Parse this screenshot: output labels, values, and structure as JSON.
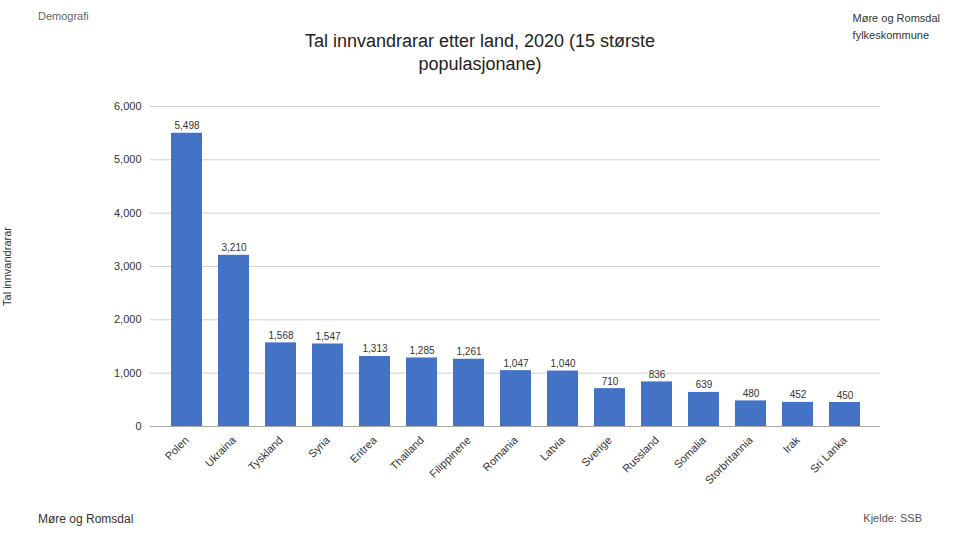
{
  "chart_data": {
    "type": "bar",
    "title": "Tal innvandrarar etter land, 2020 (15 største\npopulasjonane)",
    "ylabel": "Tal innvandrarar",
    "categories": [
      "Polen",
      "Ukraina",
      "Tyskland",
      "Syria",
      "Eritrea",
      "Thailand",
      "Filippinene",
      "Romania",
      "Latvia",
      "Sverige",
      "Russland",
      "Somalia",
      "Storbritannia",
      "Irak",
      "Sri Lanka"
    ],
    "values": [
      5498,
      3210,
      1568,
      1547,
      1313,
      1285,
      1261,
      1047,
      1040,
      710,
      836,
      639,
      480,
      452,
      450
    ],
    "value_labels": [
      "5,498",
      "3,210",
      "1,568",
      "1,547",
      "1,313",
      "1,285",
      "1,261",
      "1,047",
      "1,040",
      "710",
      "836",
      "639",
      "480",
      "452",
      "450"
    ],
    "data_labels": true,
    "color": "#4472c4",
    "ylim": [
      0,
      6000
    ],
    "yticks": [
      0,
      {
        "value": 1000,
        "label": "1,000"
      },
      {
        "value": 2000,
        "label": "2,000"
      },
      {
        "value": 3000,
        "label": "3,000"
      },
      {
        "value": 4000,
        "label": "4,000"
      },
      {
        "value": 5000,
        "label": "5,000"
      },
      {
        "value": 6000,
        "label": "6,000"
      }
    ],
    "grid": true,
    "annotations": [
      "Demografi",
      "Møre og Romsdal\nfylkeskommune",
      "Møre og Romsdal",
      "Kjelde: SSB"
    ]
  }
}
